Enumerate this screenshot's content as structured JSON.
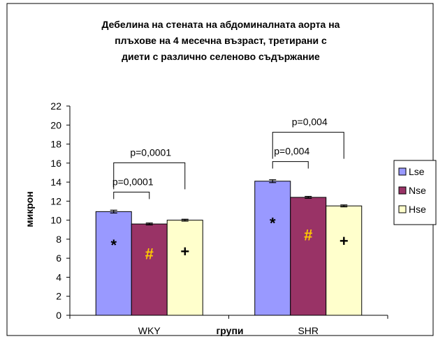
{
  "chart_data": {
    "type": "bar",
    "title_lines": [
      "Дебелина на стената на абдоминалната аорта на",
      "плъхове на 4 месечна възраст, третирани с",
      "диети с различно селеново съдържание"
    ],
    "xlabel": "групи",
    "ylabel": "микрон",
    "ylim": [
      0,
      22
    ],
    "yticks": [
      "0",
      "2",
      "4",
      "6",
      "8",
      "10",
      "12",
      "14",
      "16",
      "18",
      "20",
      "22"
    ],
    "grid": false,
    "legend_position": "right",
    "categories": [
      "WKY",
      "SHR"
    ],
    "series": [
      {
        "name": "Lse",
        "color": "#9999ff",
        "values": [
          10.9,
          14.1
        ],
        "errors": [
          0.15,
          0.15
        ],
        "markers": [
          "*",
          "*"
        ],
        "marker_color": "#000000"
      },
      {
        "name": "Nse",
        "color": "#993366",
        "values": [
          9.6,
          12.4
        ],
        "errors": [
          0.1,
          0.1
        ],
        "markers": [
          "#",
          "#"
        ],
        "marker_color": "#ffcc00"
      },
      {
        "name": "Hse",
        "color": "#ffffcc",
        "values": [
          10.0,
          11.5
        ],
        "errors": [
          0.1,
          0.1
        ],
        "markers": [
          "+",
          "+"
        ],
        "marker_color": "#000000"
      }
    ],
    "annotations": [
      {
        "category": 0,
        "from": 0,
        "to": 2,
        "label": "p=0,0001",
        "level": "outer"
      },
      {
        "category": 0,
        "from": 0,
        "to": 1,
        "label": "p=0,0001",
        "level": "inner"
      },
      {
        "category": 1,
        "from": 0,
        "to": 2,
        "label": "p=0,004",
        "level": "outer"
      },
      {
        "category": 1,
        "from": 0,
        "to": 1,
        "label": "p=0,004",
        "level": "inner"
      }
    ]
  }
}
